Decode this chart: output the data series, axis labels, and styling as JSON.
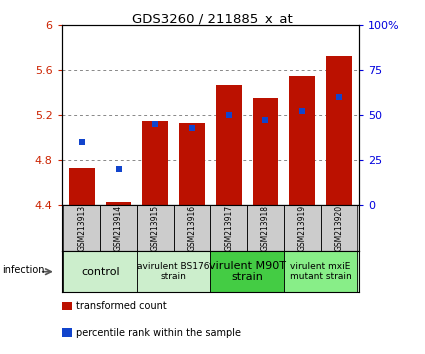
{
  "title": "GDS3260 / 211885_x_at",
  "samples": [
    "GSM213913",
    "GSM213914",
    "GSM213915",
    "GSM213916",
    "GSM213917",
    "GSM213918",
    "GSM213919",
    "GSM213920"
  ],
  "red_values": [
    4.73,
    4.43,
    5.15,
    5.13,
    5.47,
    5.35,
    5.55,
    5.72
  ],
  "blue_values": [
    35,
    20,
    45,
    43,
    50,
    47,
    52,
    60
  ],
  "ylim_left": [
    4.4,
    6.0
  ],
  "ylim_right": [
    0,
    100
  ],
  "yticks_left": [
    4.4,
    4.8,
    5.2,
    5.6,
    6.0
  ],
  "ytick_labels_left": [
    "4.4",
    "4.8",
    "5.2",
    "5.6",
    "6"
  ],
  "yticks_right": [
    0,
    25,
    50,
    75,
    100
  ],
  "ytick_labels_right": [
    "0",
    "25",
    "50",
    "75",
    "100%"
  ],
  "bar_color": "#BB1100",
  "dot_color": "#1144CC",
  "bar_width": 0.7,
  "groups": [
    {
      "label": "control",
      "samples": [
        0,
        1
      ],
      "color": "#cceecc",
      "fontsize": 8
    },
    {
      "label": "avirulent BS176\nstrain",
      "samples": [
        2,
        3
      ],
      "color": "#cceecc",
      "fontsize": 6.5
    },
    {
      "label": "virulent M90T\nstrain",
      "samples": [
        4,
        5
      ],
      "color": "#44cc44",
      "fontsize": 8
    },
    {
      "label": "virulent mxiE\nmutant strain",
      "samples": [
        6,
        7
      ],
      "color": "#88ee88",
      "fontsize": 6.5
    }
  ],
  "infection_label": "infection",
  "legend_items": [
    {
      "color": "#BB1100",
      "marker": "s",
      "label": "transformed count"
    },
    {
      "color": "#1144CC",
      "marker": "s",
      "label": "percentile rank within the sample"
    }
  ],
  "grid_color": "#aaaaaa",
  "plot_bg": "#ffffff",
  "sample_area_bg": "#cccccc"
}
